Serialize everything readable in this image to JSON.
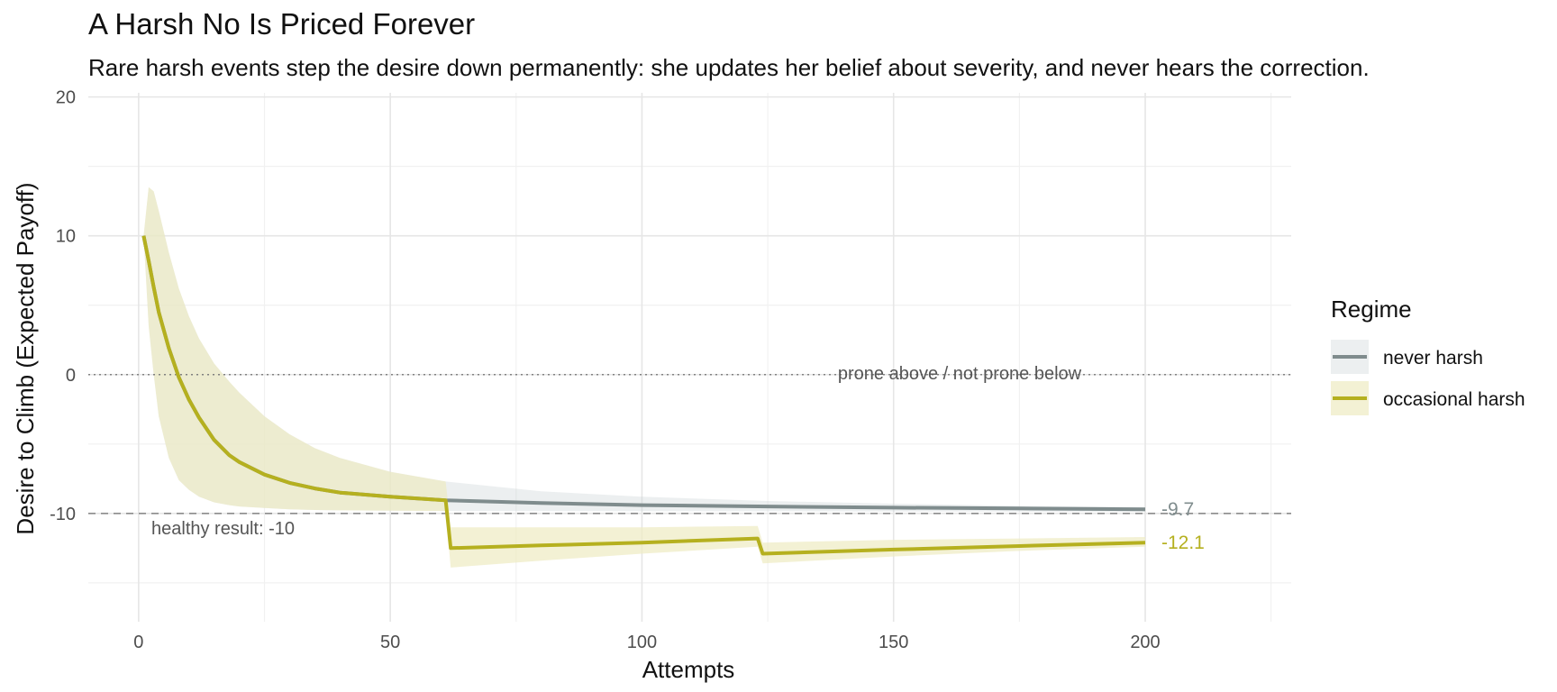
{
  "chart_data": {
    "type": "line",
    "title": "A Harsh No Is Priced Forever",
    "subtitle": "Rare harsh events step the desire down permanently: she updates her belief about severity, and never hears the correction.",
    "xlabel": "Attempts",
    "ylabel": "Desire to Climb (Expected Payoff)",
    "xlim": [
      -10,
      229
    ],
    "ylim": [
      -17.8,
      20.3
    ],
    "x_ticks": [
      0,
      50,
      100,
      150,
      200
    ],
    "x_tick_labels": [
      "0",
      "50",
      "100",
      "150",
      "200"
    ],
    "y_ticks": [
      -10,
      0,
      10,
      20
    ],
    "y_tick_labels": [
      "-10",
      "0",
      "10",
      "20"
    ],
    "grid": true,
    "legend": {
      "title": "Regime",
      "position": "right",
      "entries": [
        "never harsh",
        "occasional harsh"
      ]
    },
    "series": [
      {
        "name": "never harsh",
        "color": "#7f8c8d",
        "ribbon_color": "#c9d0d3",
        "x": [
          1,
          2,
          3,
          4,
          6,
          8,
          10,
          12,
          15,
          18,
          20,
          25,
          30,
          35,
          40,
          50,
          61,
          80,
          100,
          125,
          150,
          175,
          200
        ],
        "y": [
          10.0,
          8.2,
          6.3,
          4.5,
          1.9,
          -0.2,
          -1.8,
          -3.1,
          -4.7,
          -5.8,
          -6.3,
          -7.2,
          -7.8,
          -8.2,
          -8.5,
          -8.8,
          -9.05,
          -9.25,
          -9.4,
          -9.5,
          -9.58,
          -9.64,
          -9.7
        ],
        "lower": [
          10.0,
          3.5,
          0.0,
          -3.0,
          -6.0,
          -7.6,
          -8.3,
          -8.8,
          -9.2,
          -9.4,
          -9.5,
          -9.6,
          -9.7,
          -9.75,
          -9.78,
          -9.8,
          -9.82,
          -9.83,
          -9.84,
          -9.85,
          -9.86,
          -9.87,
          -9.88
        ],
        "upper": [
          10.0,
          13.5,
          13.2,
          11.8,
          8.8,
          6.2,
          4.2,
          2.6,
          0.8,
          -0.5,
          -1.3,
          -3.0,
          -4.3,
          -5.3,
          -6.0,
          -7.0,
          -7.7,
          -8.4,
          -8.8,
          -9.1,
          -9.3,
          -9.45,
          -9.55
        ]
      },
      {
        "name": "occasional harsh",
        "color": "#b5b01f",
        "ribbon_color": "#eeebc2",
        "x": [
          1,
          2,
          3,
          4,
          6,
          8,
          10,
          12,
          15,
          18,
          20,
          25,
          30,
          35,
          40,
          50,
          61,
          62,
          80,
          100,
          123,
          124,
          150,
          175,
          200
        ],
        "y": [
          10.0,
          8.2,
          6.3,
          4.5,
          1.9,
          -0.2,
          -1.8,
          -3.1,
          -4.7,
          -5.8,
          -6.3,
          -7.2,
          -7.8,
          -8.2,
          -8.5,
          -8.8,
          -9.05,
          -12.5,
          -12.3,
          -12.1,
          -11.8,
          -12.9,
          -12.6,
          -12.35,
          -12.1
        ],
        "lower": [
          10.0,
          3.5,
          0.0,
          -3.0,
          -6.0,
          -7.6,
          -8.3,
          -8.8,
          -9.2,
          -9.4,
          -9.5,
          -9.6,
          -9.7,
          -9.75,
          -9.78,
          -9.8,
          -9.82,
          -13.9,
          -13.4,
          -12.9,
          -12.4,
          -13.6,
          -13.1,
          -12.7,
          -12.4
        ],
        "upper": [
          10.0,
          13.5,
          13.2,
          11.8,
          8.8,
          6.2,
          4.2,
          2.6,
          0.8,
          -0.5,
          -1.3,
          -3.0,
          -4.3,
          -5.3,
          -6.0,
          -7.0,
          -7.7,
          -11.0,
          -11.0,
          -11.0,
          -10.9,
          -12.1,
          -11.9,
          -11.8,
          -11.7
        ]
      }
    ],
    "reference_lines": [
      {
        "y": 0,
        "style": "dotted",
        "label": "prone above / not prone below"
      },
      {
        "y": -10,
        "style": "dashed",
        "label": "healthy result: -10"
      }
    ],
    "end_labels": [
      {
        "series": "never harsh",
        "text": "-9.7",
        "x": 200,
        "y": -9.7
      },
      {
        "series": "occasional harsh",
        "text": "-12.1",
        "x": 200,
        "y": -12.1
      }
    ]
  }
}
